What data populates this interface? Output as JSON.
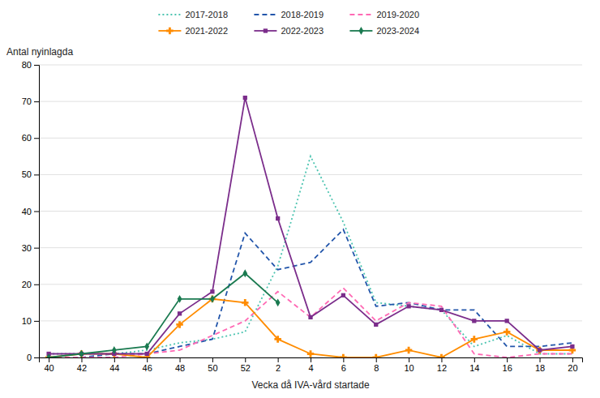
{
  "chart_data": {
    "type": "line",
    "xlabel": "Vecka då IVA-vård startade",
    "ylabel": "Antal nyinlagda",
    "categories": [
      40,
      42,
      44,
      46,
      48,
      50,
      52,
      2,
      4,
      6,
      8,
      10,
      12,
      14,
      16,
      18,
      20
    ],
    "series": [
      {
        "name": "2017-2018",
        "color": "#4CC4B0",
        "line_style": "dotted",
        "values": [
          1,
          1,
          1,
          2,
          4,
          5,
          7,
          25,
          55,
          37,
          15,
          14,
          13,
          3,
          6,
          1,
          1
        ]
      },
      {
        "name": "2018-2019",
        "color": "#2255AA",
        "line_style": "dashed",
        "values": [
          0,
          0,
          1,
          1,
          3,
          5,
          34,
          24,
          26,
          35,
          14,
          15,
          13,
          13,
          3,
          3,
          4
        ]
      },
      {
        "name": "2019-2020",
        "color": "#FF69B4",
        "line_style": "dashed",
        "values": [
          0,
          0,
          0,
          1,
          2,
          6,
          10,
          18,
          11,
          19,
          10,
          15,
          14,
          1,
          0,
          1,
          1
        ]
      },
      {
        "name": "2021-2022",
        "color": "#FF8C00",
        "line_style": "solid",
        "marker": "plus",
        "values": [
          0,
          1,
          1,
          0,
          9,
          16,
          15,
          5,
          1,
          0,
          0,
          2,
          0,
          5,
          7,
          2,
          2
        ]
      },
      {
        "name": "2022-2023",
        "color": "#7B2D8B",
        "line_style": "solid",
        "marker": "square",
        "values": [
          1,
          1,
          1,
          1,
          12,
          18,
          71,
          38,
          11,
          17,
          9,
          14,
          13,
          10,
          10,
          2,
          3
        ]
      },
      {
        "name": "2023-2024",
        "color": "#1A7A50",
        "line_style": "solid",
        "marker": "diamond",
        "values": [
          0,
          1,
          2,
          3,
          16,
          16,
          23,
          15,
          null,
          null,
          null,
          null,
          null,
          null,
          null,
          null,
          null
        ]
      }
    ],
    "ylim": [
      0,
      80
    ],
    "yticks": [
      0,
      10,
      20,
      30,
      40,
      50,
      60,
      70,
      80
    ],
    "grid": true,
    "legend": "top"
  }
}
